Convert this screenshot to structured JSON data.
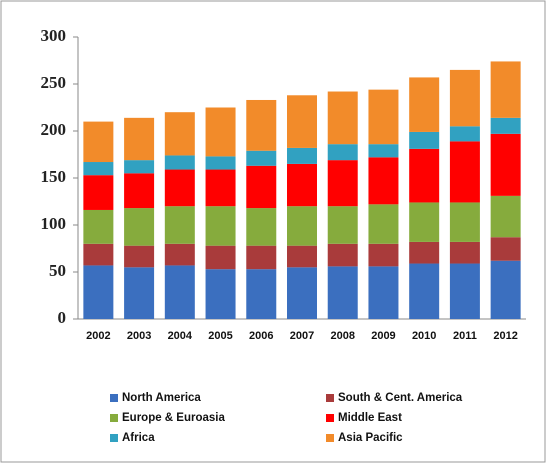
{
  "chart_data": {
    "type": "stacked_bar",
    "categories": [
      "2002",
      "2003",
      "2004",
      "2005",
      "2006",
      "2007",
      "2008",
      "2009",
      "2010",
      "2011",
      "2012"
    ],
    "series": [
      {
        "name": "North America",
        "color": "#3b6fbf",
        "values": [
          57,
          55,
          57,
          53,
          53,
          55,
          56,
          56,
          59,
          59,
          62
        ]
      },
      {
        "name": "South & Cent. America",
        "color": "#a93b3b",
        "values": [
          23,
          23,
          23,
          25,
          25,
          23,
          24,
          24,
          23,
          23,
          25
        ]
      },
      {
        "name": "Europe & Euroasia",
        "color": "#86ab3d",
        "values": [
          36,
          40,
          40,
          42,
          40,
          42,
          40,
          42,
          42,
          42,
          44
        ]
      },
      {
        "name": "Middle East",
        "color": "#ff0000",
        "values": [
          37,
          37,
          39,
          39,
          45,
          45,
          49,
          50,
          57,
          65,
          66
        ]
      },
      {
        "name": "Africa",
        "color": "#31a1c1",
        "values": [
          14,
          14,
          15,
          14,
          16,
          17,
          17,
          14,
          18,
          16,
          17
        ]
      },
      {
        "name": "Asia Pacific",
        "color": "#f28b2a",
        "values": [
          43,
          45,
          46,
          52,
          54,
          56,
          56,
          58,
          58,
          60,
          60
        ]
      }
    ],
    "ylim": [
      0,
      300
    ],
    "yticks": [
      0,
      50,
      100,
      150,
      200,
      250,
      300
    ],
    "grid": false
  }
}
